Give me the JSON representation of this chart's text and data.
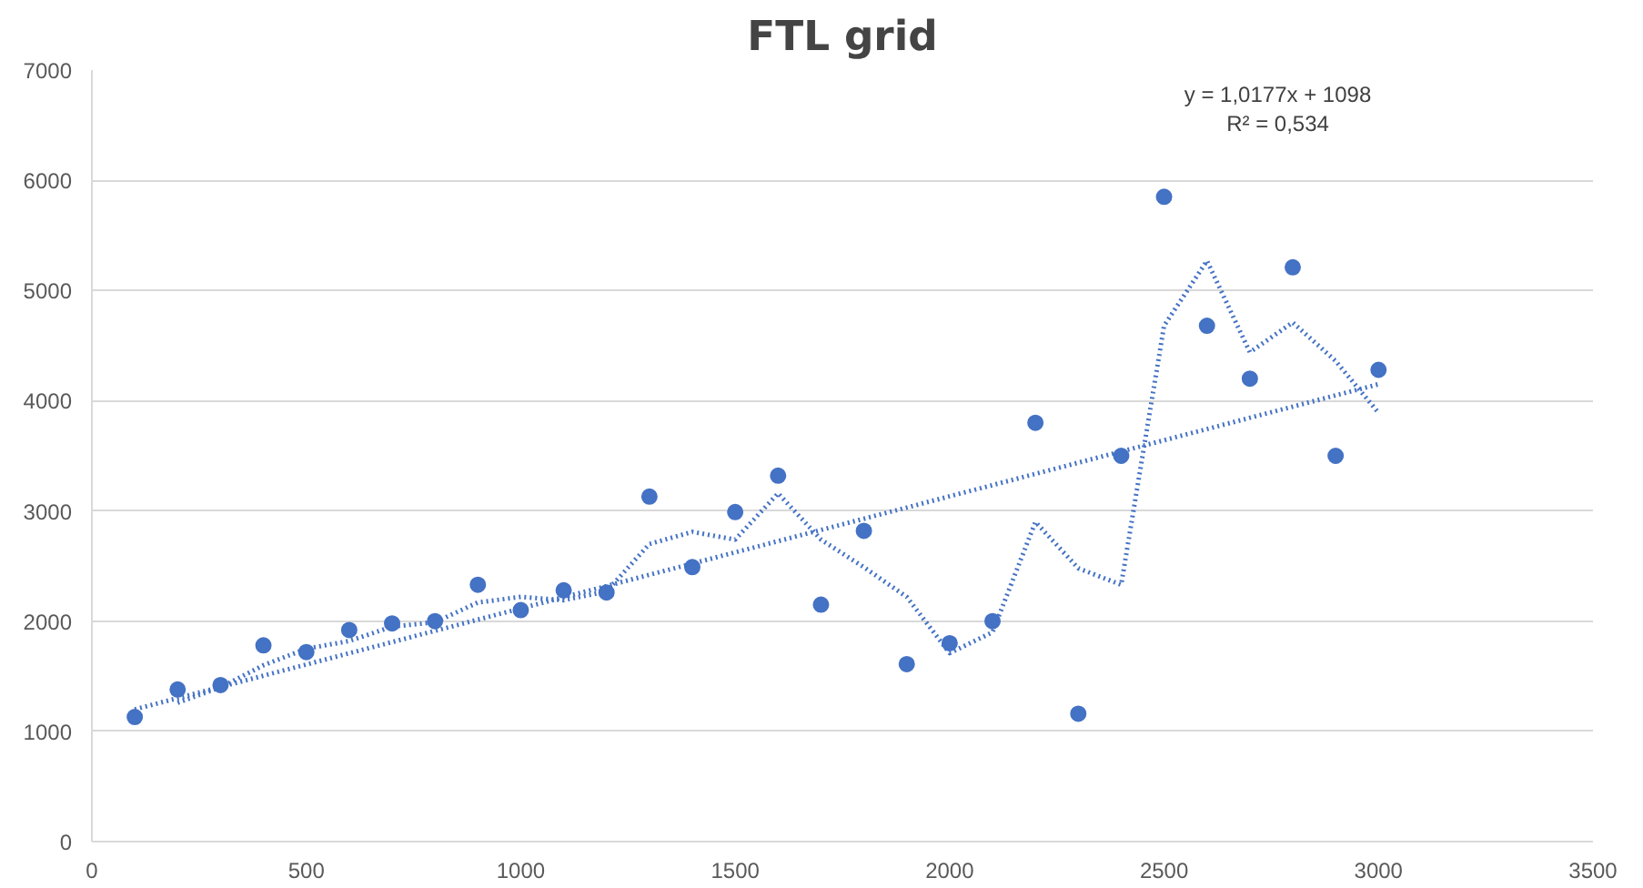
{
  "chart_data": {
    "type": "scatter",
    "title": "FTL grid",
    "grid": "y",
    "xlim": [
      0,
      3500
    ],
    "xticks": [
      0,
      500,
      1000,
      1500,
      2000,
      2500,
      3000,
      3500
    ],
    "ylim": [
      0,
      7000
    ],
    "yticks": [
      0,
      1000,
      2000,
      3000,
      4000,
      5000,
      6000,
      7000
    ],
    "x": [
      100,
      200,
      300,
      400,
      500,
      600,
      700,
      800,
      900,
      1000,
      1100,
      1200,
      1300,
      1400,
      1500,
      1600,
      1700,
      1800,
      1900,
      2000,
      2100,
      2200,
      2300,
      2400,
      2500,
      2600,
      2700,
      2800,
      2900,
      3000
    ],
    "series": [
      {
        "marker": "circle",
        "color": "#4472c4",
        "values": [
          1130,
          1380,
          1420,
          1780,
          1720,
          1920,
          1980,
          2000,
          2330,
          2100,
          2280,
          2260,
          3130,
          2490,
          2990,
          3320,
          2150,
          2820,
          1610,
          1800,
          2000,
          3800,
          1160,
          3500,
          5850,
          4680,
          4200,
          5210,
          3500,
          4280
        ]
      },
      {
        "type": "line",
        "marker": "none",
        "line_style": "dotted",
        "color": "#4472c4",
        "x": [
          200,
          300,
          400,
          500,
          600,
          700,
          800,
          900,
          1000,
          1100,
          1200,
          1300,
          1400,
          1500,
          1600,
          1700,
          1800,
          1900,
          2000,
          2100,
          2200,
          2300,
          2400,
          2500,
          2600,
          2700,
          2800,
          2900,
          3000
        ],
        "values": [
          1260,
          1400,
          1600,
          1750,
          1820,
          1950,
          1990,
          2170,
          2220,
          2190,
          2270,
          2700,
          2810,
          2740,
          3160,
          2740,
          2490,
          2220,
          1710,
          1900,
          2900,
          2480,
          2330,
          4680,
          5270,
          4440,
          4710,
          4360,
          3890
        ]
      },
      {
        "type": "line",
        "marker": "none",
        "line_style": "dotted",
        "color": "#4472c4",
        "x": [
          100,
          3000
        ],
        "values": [
          1200,
          4150
        ]
      }
    ],
    "annotations": [
      "y = 1,0177x + 1098",
      "R² = 0,534"
    ]
  }
}
